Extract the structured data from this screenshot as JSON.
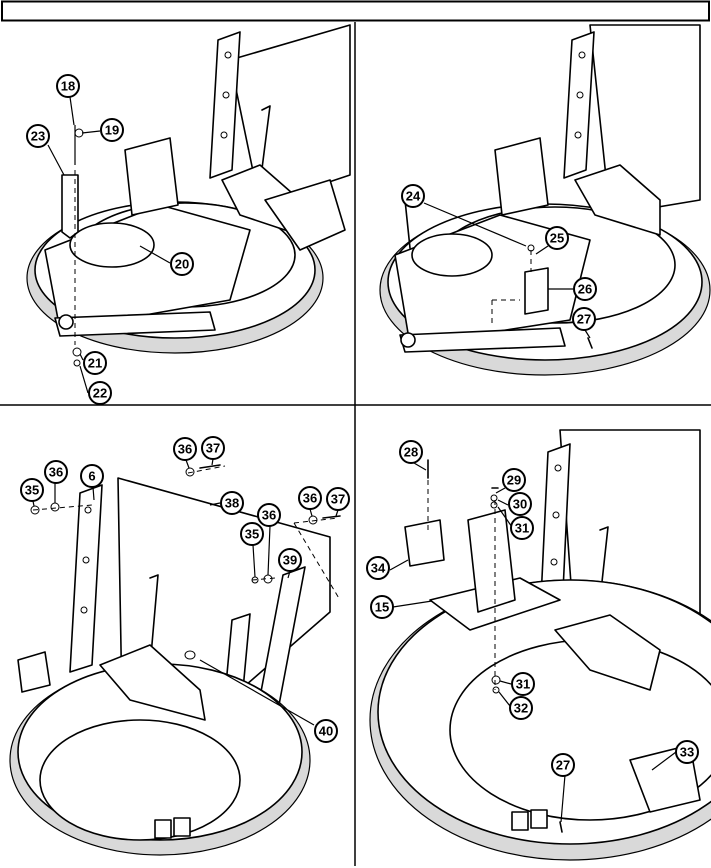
{
  "callouts": {
    "panel_a": [
      {
        "id": "a18",
        "label": "18"
      },
      {
        "id": "a19",
        "label": "19"
      },
      {
        "id": "a23",
        "label": "23"
      },
      {
        "id": "a20",
        "label": "20"
      },
      {
        "id": "a21",
        "label": "21"
      },
      {
        "id": "a22",
        "label": "22"
      }
    ],
    "panel_b": [
      {
        "id": "b24",
        "label": "24"
      },
      {
        "id": "b25",
        "label": "25"
      },
      {
        "id": "b26",
        "label": "26"
      },
      {
        "id": "b27",
        "label": "27"
      }
    ],
    "panel_c": [
      {
        "id": "c6",
        "label": "6"
      },
      {
        "id": "c35a",
        "label": "35"
      },
      {
        "id": "c36a",
        "label": "36"
      },
      {
        "id": "c36b",
        "label": "36"
      },
      {
        "id": "c37a",
        "label": "37"
      },
      {
        "id": "c38",
        "label": "38"
      },
      {
        "id": "c36c",
        "label": "36"
      },
      {
        "id": "c37b",
        "label": "37"
      },
      {
        "id": "c36d",
        "label": "36"
      },
      {
        "id": "c35b",
        "label": "35"
      },
      {
        "id": "c39",
        "label": "39"
      },
      {
        "id": "c40",
        "label": "40"
      }
    ],
    "panel_d": [
      {
        "id": "d28",
        "label": "28"
      },
      {
        "id": "d29",
        "label": "29"
      },
      {
        "id": "d30",
        "label": "30"
      },
      {
        "id": "d31a",
        "label": "31"
      },
      {
        "id": "d34",
        "label": "34"
      },
      {
        "id": "d15",
        "label": "15"
      },
      {
        "id": "d31b",
        "label": "31"
      },
      {
        "id": "d32",
        "label": "32"
      },
      {
        "id": "d33",
        "label": "33"
      },
      {
        "id": "d27",
        "label": "27"
      }
    ]
  },
  "colors": {
    "line": "#000000",
    "background": "#ffffff",
    "shade": "#d9d9d9"
  }
}
